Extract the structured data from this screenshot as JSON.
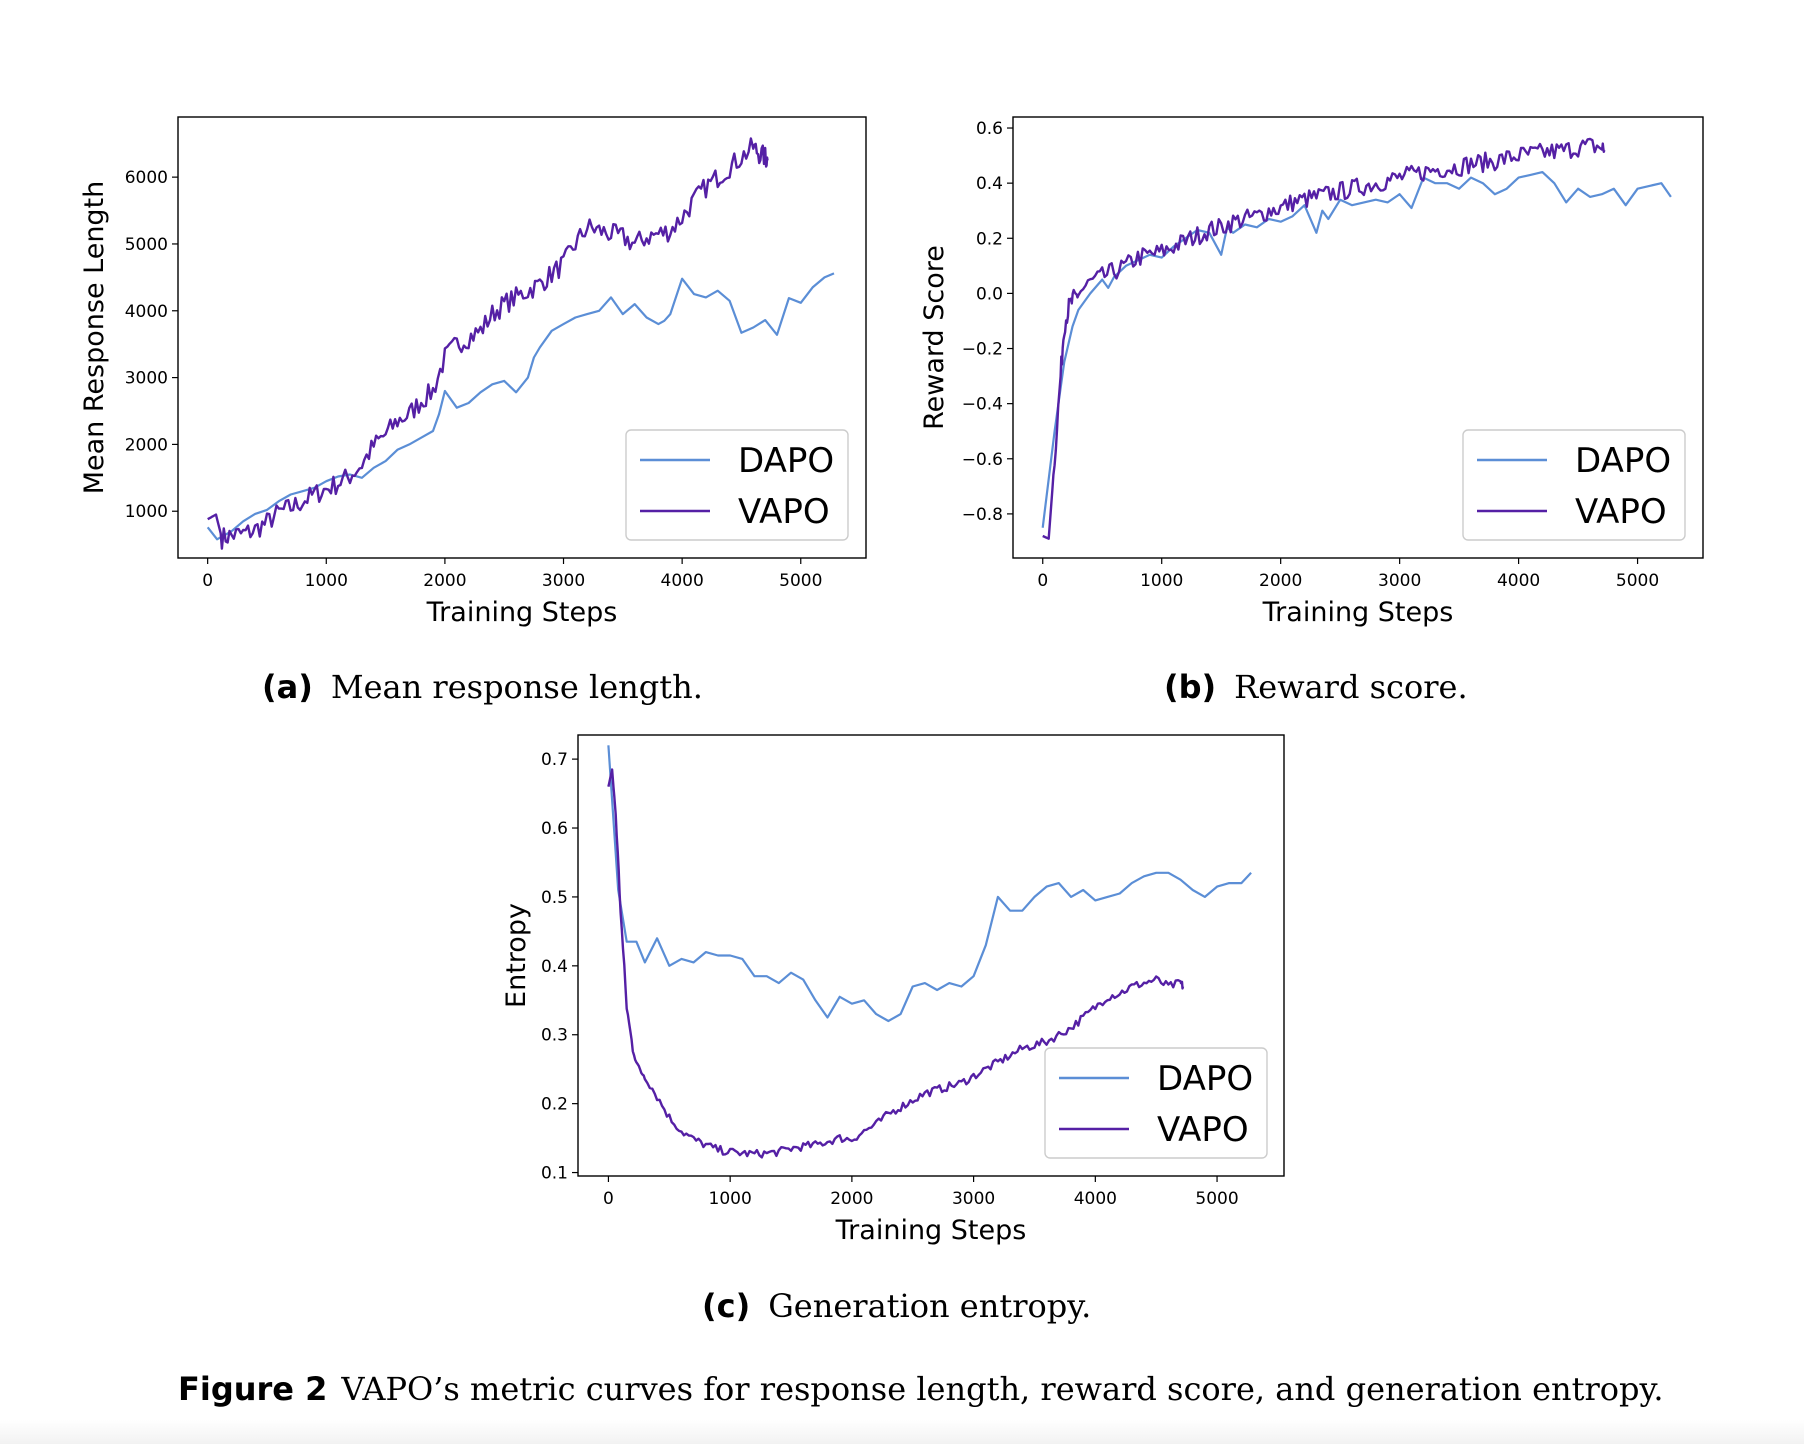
{
  "chart_data": [
    {
      "id": "a",
      "type": "line",
      "caption_tag": "(a)",
      "caption": "Mean response length.",
      "xlabel": "Training Steps",
      "ylabel": "Mean Response Length",
      "xlim": [
        -250,
        5550
      ],
      "ylim": [
        300,
        6900
      ],
      "xticks": [
        0,
        1000,
        2000,
        3000,
        4000,
        5000
      ],
      "xtick_labels": [
        "0",
        "1000",
        "2000",
        "3000",
        "4000",
        "5000"
      ],
      "yticks": [
        1000,
        2000,
        3000,
        4000,
        5000,
        6000
      ],
      "ytick_labels": [
        "1000",
        "2000",
        "3000",
        "4000",
        "5000",
        "6000"
      ],
      "legend_position": "lower-right",
      "series": [
        {
          "name": "DAPO",
          "color": "#5b8ed6",
          "x": [
            0,
            80,
            200,
            300,
            400,
            500,
            600,
            700,
            800,
            900,
            1000,
            1100,
            1200,
            1300,
            1400,
            1500,
            1600,
            1700,
            1800,
            1900,
            1950,
            2000,
            2100,
            2200,
            2300,
            2400,
            2500,
            2600,
            2700,
            2750,
            2800,
            2900,
            3000,
            3100,
            3200,
            3300,
            3400,
            3500,
            3600,
            3700,
            3800,
            3850,
            3900,
            4000,
            4100,
            4200,
            4300,
            4400,
            4500,
            4600,
            4700,
            4800,
            4900,
            5000,
            5100,
            5200,
            5280
          ],
          "y": [
            760,
            580,
            700,
            850,
            960,
            1020,
            1150,
            1250,
            1300,
            1350,
            1450,
            1520,
            1550,
            1500,
            1650,
            1750,
            1920,
            2000,
            2100,
            2200,
            2450,
            2800,
            2550,
            2620,
            2780,
            2900,
            2950,
            2780,
            3000,
            3300,
            3450,
            3700,
            3800,
            3900,
            3950,
            4000,
            4200,
            3950,
            4100,
            3900,
            3800,
            3850,
            3950,
            4480,
            4250,
            4200,
            4300,
            4150,
            3670,
            3750,
            3860,
            3640,
            4190,
            4120,
            4350,
            4500,
            4560
          ],
          "x_extra": [
            5150,
            5220,
            5280
          ],
          "y_extra": [
            4600,
            4700,
            4540
          ]
        },
        {
          "name": "VAPO",
          "color": "#5520a5",
          "x": [
            0,
            70,
            120,
            200,
            300,
            400,
            500,
            600,
            700,
            800,
            900,
            1000,
            1100,
            1200,
            1300,
            1400,
            1500,
            1600,
            1700,
            1800,
            1900,
            2000,
            2100,
            2200,
            2300,
            2400,
            2500,
            2600,
            2700,
            2800,
            2900,
            3000,
            3100,
            3200,
            3300,
            3400,
            3500,
            3600,
            3700,
            3800,
            3900,
            4000,
            4100,
            4200,
            4300,
            4400,
            4500,
            4600,
            4650,
            4700,
            4720
          ],
          "y": [
            880,
            950,
            600,
            640,
            660,
            720,
            830,
            980,
            1050,
            1150,
            1250,
            1330,
            1420,
            1530,
            1700,
            1980,
            2150,
            2350,
            2450,
            2650,
            2800,
            3300,
            3500,
            3600,
            3700,
            3950,
            4100,
            4200,
            4300,
            4400,
            4550,
            4700,
            5000,
            5250,
            5200,
            5150,
            5100,
            5000,
            5100,
            5150,
            5200,
            5400,
            5650,
            5850,
            6000,
            6150,
            6300,
            6450,
            6350,
            6300,
            6250
          ],
          "noise": 160
        }
      ]
    },
    {
      "id": "b",
      "type": "line",
      "caption_tag": "(b)",
      "caption": "Reward score.",
      "xlabel": "Training Steps",
      "ylabel": "Reward Score",
      "xlim": [
        -250,
        5550
      ],
      "ylim": [
        -0.96,
        0.64
      ],
      "xticks": [
        0,
        1000,
        2000,
        3000,
        4000,
        5000
      ],
      "xtick_labels": [
        "0",
        "1000",
        "2000",
        "3000",
        "4000",
        "5000"
      ],
      "yticks": [
        -0.8,
        -0.6,
        -0.4,
        -0.2,
        0.0,
        0.2,
        0.4,
        0.6
      ],
      "ytick_labels": [
        "−0.8",
        "−0.6",
        "−0.4",
        "−0.2",
        "0.0",
        "0.2",
        "0.4",
        "0.6"
      ],
      "legend_position": "lower-right",
      "series": [
        {
          "name": "DAPO",
          "color": "#5b8ed6",
          "x": [
            0,
            100,
            180,
            250,
            300,
            400,
            500,
            550,
            600,
            700,
            800,
            900,
            1000,
            1100,
            1200,
            1300,
            1400,
            1500,
            1550,
            1600,
            1700,
            1800,
            1900,
            2000,
            2100,
            2200,
            2300,
            2350,
            2400,
            2500,
            2600,
            2700,
            2800,
            2900,
            3000,
            3100,
            3200,
            3300,
            3400,
            3500,
            3600,
            3700,
            3800,
            3900,
            4000,
            4100,
            4200,
            4300,
            4400,
            4500,
            4600,
            4700,
            4800,
            4900,
            5000,
            5100,
            5200,
            5280
          ],
          "y": [
            -0.85,
            -0.5,
            -0.25,
            -0.12,
            -0.06,
            0.0,
            0.05,
            0.02,
            0.06,
            0.1,
            0.12,
            0.14,
            0.13,
            0.17,
            0.2,
            0.23,
            0.22,
            0.14,
            0.24,
            0.22,
            0.25,
            0.24,
            0.27,
            0.26,
            0.28,
            0.32,
            0.22,
            0.3,
            0.27,
            0.34,
            0.32,
            0.33,
            0.34,
            0.33,
            0.36,
            0.31,
            0.42,
            0.4,
            0.4,
            0.38,
            0.42,
            0.4,
            0.36,
            0.38,
            0.42,
            0.43,
            0.44,
            0.4,
            0.33,
            0.38,
            0.35,
            0.36,
            0.38,
            0.32,
            0.38,
            0.39,
            0.4,
            0.35
          ]
        },
        {
          "name": "VAPO",
          "color": "#5520a5",
          "x": [
            0,
            50,
            100,
            150,
            180,
            220,
            260,
            300,
            400,
            500,
            600,
            700,
            800,
            900,
            1000,
            1100,
            1200,
            1300,
            1400,
            1500,
            1600,
            1700,
            1800,
            1900,
            2000,
            2100,
            2200,
            2300,
            2400,
            2500,
            2600,
            2700,
            2800,
            2900,
            3000,
            3100,
            3200,
            3300,
            3400,
            3500,
            3600,
            3700,
            3800,
            3900,
            4000,
            4100,
            4200,
            4300,
            4400,
            4500,
            4600,
            4700,
            4720
          ],
          "y": [
            -0.88,
            -0.89,
            -0.6,
            -0.3,
            -0.12,
            -0.05,
            -0.02,
            0.0,
            0.04,
            0.06,
            0.08,
            0.1,
            0.13,
            0.14,
            0.15,
            0.17,
            0.19,
            0.21,
            0.23,
            0.24,
            0.26,
            0.27,
            0.28,
            0.3,
            0.31,
            0.33,
            0.34,
            0.35,
            0.36,
            0.37,
            0.38,
            0.39,
            0.4,
            0.41,
            0.42,
            0.43,
            0.44,
            0.45,
            0.455,
            0.46,
            0.47,
            0.475,
            0.48,
            0.49,
            0.5,
            0.505,
            0.51,
            0.515,
            0.52,
            0.53,
            0.535,
            0.53,
            0.52
          ],
          "noise": 0.035
        }
      ]
    },
    {
      "id": "c",
      "type": "line",
      "caption_tag": "(c)",
      "caption": "Generation entropy.",
      "xlabel": "Training Steps",
      "ylabel": "Entropy",
      "xlim": [
        -250,
        5550
      ],
      "ylim": [
        0.095,
        0.735
      ],
      "xticks": [
        0,
        1000,
        2000,
        3000,
        4000,
        5000
      ],
      "xtick_labels": [
        "0",
        "1000",
        "2000",
        "3000",
        "4000",
        "5000"
      ],
      "yticks": [
        0.1,
        0.2,
        0.3,
        0.4,
        0.5,
        0.6,
        0.7
      ],
      "ytick_labels": [
        "0.1",
        "0.2",
        "0.3",
        "0.4",
        "0.5",
        "0.6",
        "0.7"
      ],
      "legend_position": "lower-right",
      "series": [
        {
          "name": "DAPO",
          "color": "#5b8ed6",
          "x": [
            0,
            80,
            150,
            230,
            300,
            400,
            500,
            600,
            700,
            800,
            900,
            1000,
            1100,
            1200,
            1300,
            1400,
            1500,
            1600,
            1700,
            1800,
            1900,
            2000,
            2100,
            2200,
            2300,
            2400,
            2500,
            2600,
            2700,
            2800,
            2900,
            3000,
            3100,
            3200,
            3300,
            3400,
            3500,
            3600,
            3700,
            3800,
            3900,
            4000,
            4100,
            4200,
            4300,
            4400,
            4500,
            4600,
            4700,
            4800,
            4900,
            5000,
            5100,
            5200,
            5280
          ],
          "y": [
            0.72,
            0.51,
            0.435,
            0.435,
            0.405,
            0.44,
            0.4,
            0.41,
            0.405,
            0.42,
            0.415,
            0.415,
            0.41,
            0.385,
            0.385,
            0.375,
            0.39,
            0.38,
            0.35,
            0.325,
            0.355,
            0.345,
            0.35,
            0.33,
            0.32,
            0.33,
            0.37,
            0.375,
            0.365,
            0.375,
            0.37,
            0.385,
            0.43,
            0.5,
            0.48,
            0.48,
            0.5,
            0.515,
            0.52,
            0.5,
            0.51,
            0.495,
            0.5,
            0.505,
            0.52,
            0.53,
            0.535,
            0.535,
            0.525,
            0.51,
            0.5,
            0.515,
            0.52,
            0.52,
            0.535
          ]
        },
        {
          "name": "VAPO",
          "color": "#5520a5",
          "x": [
            0,
            30,
            60,
            100,
            150,
            200,
            250,
            300,
            400,
            500,
            600,
            700,
            800,
            900,
            1000,
            1100,
            1200,
            1300,
            1400,
            1500,
            1600,
            1700,
            1800,
            1900,
            2000,
            2100,
            2200,
            2300,
            2400,
            2500,
            2600,
            2700,
            2800,
            2900,
            3000,
            3100,
            3200,
            3300,
            3400,
            3500,
            3600,
            3700,
            3800,
            3900,
            4000,
            4100,
            4200,
            4300,
            4400,
            4500,
            4600,
            4700,
            4720
          ],
          "y": [
            0.66,
            0.685,
            0.62,
            0.48,
            0.34,
            0.28,
            0.25,
            0.24,
            0.21,
            0.18,
            0.16,
            0.148,
            0.14,
            0.133,
            0.13,
            0.128,
            0.127,
            0.128,
            0.13,
            0.135,
            0.138,
            0.14,
            0.145,
            0.15,
            0.148,
            0.16,
            0.17,
            0.185,
            0.195,
            0.205,
            0.215,
            0.22,
            0.225,
            0.23,
            0.24,
            0.25,
            0.26,
            0.27,
            0.28,
            0.285,
            0.29,
            0.3,
            0.31,
            0.325,
            0.34,
            0.355,
            0.36,
            0.37,
            0.375,
            0.38,
            0.37,
            0.375,
            0.37
          ],
          "noise": 0.006
        }
      ]
    }
  ],
  "figure_caption": {
    "tag": "Figure 2",
    "text": "VAPO’s metric curves for response length, reward score, and generation entropy."
  }
}
